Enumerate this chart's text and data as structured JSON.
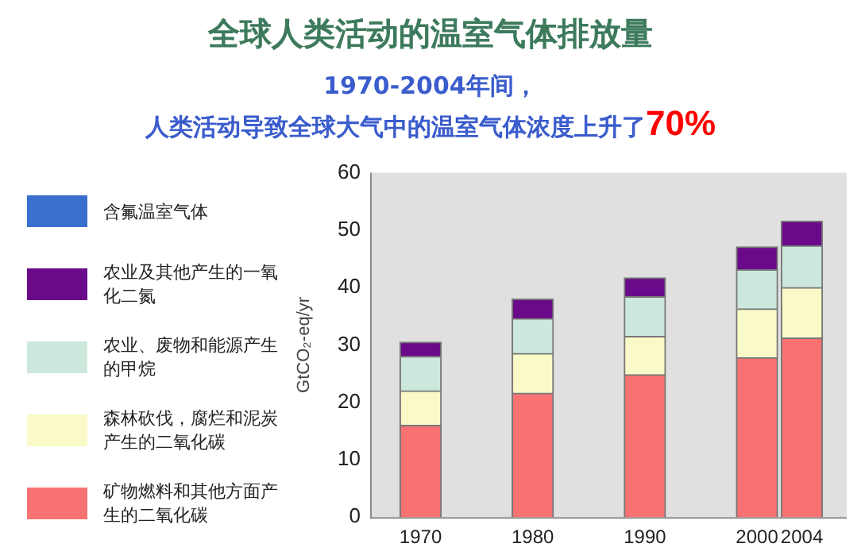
{
  "chart_data": {
    "type": "bar",
    "stacked": true,
    "title": "全球人类活动的温室气体排放量",
    "subtitle": "1970-2004年间，",
    "annotations": [
      "人类活动导致全球大气中的温室气体浓度上升了",
      "70%"
    ],
    "ylabel": "GtCO₂-eq/yr",
    "x": [
      1970,
      1980,
      1990,
      2000,
      2004
    ],
    "xlim": [
      1965.5,
      2008
    ],
    "xticks": [
      1970,
      1980,
      1990,
      2000,
      2004
    ],
    "ylim": [
      0,
      60
    ],
    "yticks": [
      0,
      10,
      20,
      30,
      40,
      50,
      60
    ],
    "grid": false,
    "legend": "left",
    "series": [
      {
        "name": "矿物燃料和其他方面产生的二氧化碳",
        "color": "#f87272",
        "values": [
          16,
          21.6,
          24.8,
          27.8,
          31.2
        ]
      },
      {
        "name": "森林砍伐，腐烂和泥炭产生的二氧化碳",
        "color": "#fafac8",
        "values": [
          6,
          6.9,
          6.7,
          8.5,
          8.8
        ]
      },
      {
        "name": "农业、废物和能源产生的甲烷",
        "color": "#cce8dc",
        "values": [
          6,
          6.1,
          6.9,
          6.8,
          7.3
        ]
      },
      {
        "name": "农业及其他产生的一氧化二氮",
        "color": "#6a0a8a",
        "values": [
          2.5,
          3.4,
          3.3,
          4,
          4.3
        ]
      },
      {
        "name": "含氟温室气体",
        "color": "#3a6fd0",
        "values": [
          null,
          null,
          null,
          null,
          null
        ]
      }
    ]
  }
}
